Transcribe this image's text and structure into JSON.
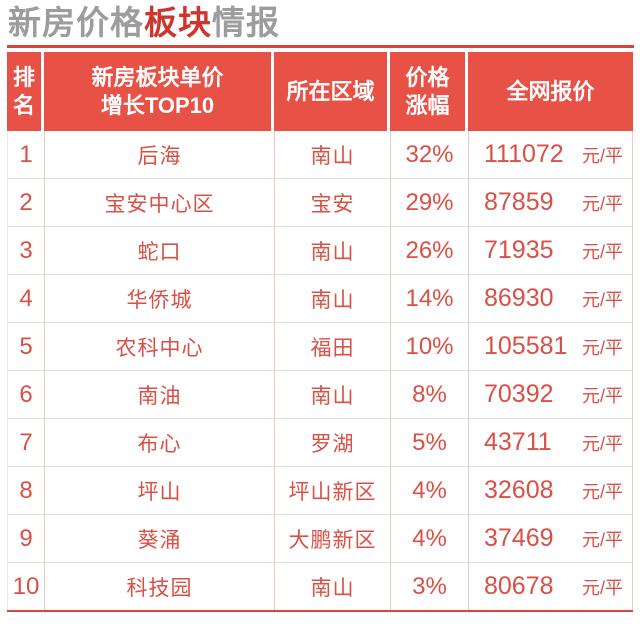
{
  "title": {
    "part1": "新房价格",
    "part2": "板块",
    "part3": "情报"
  },
  "colors": {
    "header_bg": "#e85146",
    "header_text": "#ffffff",
    "body_text": "#db4f45",
    "title_gray": "#9c9c9c",
    "title_red": "#ce362d",
    "rule_red": "#d7453e",
    "row_divider": "#dedede",
    "column_divider": "#f3c6c2"
  },
  "table": {
    "headers": [
      {
        "lines": [
          "排",
          "名"
        ]
      },
      {
        "lines": [
          "新房板块单价",
          "增长TOP10"
        ]
      },
      {
        "lines": [
          "所在区域"
        ]
      },
      {
        "lines": [
          "价格",
          "涨幅"
        ]
      },
      {
        "lines": [
          "全网报价"
        ]
      }
    ],
    "unit": "元/平",
    "rows": [
      {
        "rank": "1",
        "name": "后海",
        "district": "南山",
        "change": "32%",
        "price": "111072"
      },
      {
        "rank": "2",
        "name": "宝安中心区",
        "district": "宝安",
        "change": "29%",
        "price": "87859"
      },
      {
        "rank": "3",
        "name": "蛇口",
        "district": "南山",
        "change": "26%",
        "price": "71935"
      },
      {
        "rank": "4",
        "name": "华侨城",
        "district": "南山",
        "change": "14%",
        "price": "86930"
      },
      {
        "rank": "5",
        "name": "农科中心",
        "district": "福田",
        "change": "10%",
        "price": "105581"
      },
      {
        "rank": "6",
        "name": "南油",
        "district": "南山",
        "change": "8%",
        "price": "70392"
      },
      {
        "rank": "7",
        "name": "布心",
        "district": "罗湖",
        "change": "5%",
        "price": "43711"
      },
      {
        "rank": "8",
        "name": "坪山",
        "district": "坪山新区",
        "change": "4%",
        "price": "32608"
      },
      {
        "rank": "9",
        "name": "葵涌",
        "district": "大鹏新区",
        "change": "4%",
        "price": "37469"
      },
      {
        "rank": "10",
        "name": "科技园",
        "district": "南山",
        "change": "3%",
        "price": "80678"
      }
    ]
  },
  "chart_data": {
    "type": "table",
    "title": "新房价格板块情报",
    "columns": [
      "排名",
      "新房板块单价增长TOP10",
      "所在区域",
      "价格涨幅",
      "全网报价(元/平)"
    ],
    "rows": [
      [
        1,
        "后海",
        "南山",
        "32%",
        111072
      ],
      [
        2,
        "宝安中心区",
        "宝安",
        "29%",
        87859
      ],
      [
        3,
        "蛇口",
        "南山",
        "26%",
        71935
      ],
      [
        4,
        "华侨城",
        "南山",
        "14%",
        86930
      ],
      [
        5,
        "农科中心",
        "福田",
        "10%",
        105581
      ],
      [
        6,
        "南油",
        "南山",
        "8%",
        70392
      ],
      [
        7,
        "布心",
        "罗湖",
        "5%",
        43711
      ],
      [
        8,
        "坪山",
        "坪山新区",
        "4%",
        32608
      ],
      [
        9,
        "葵涌",
        "大鹏新区",
        "4%",
        37469
      ],
      [
        10,
        "科技园",
        "南山",
        "3%",
        80678
      ]
    ]
  }
}
